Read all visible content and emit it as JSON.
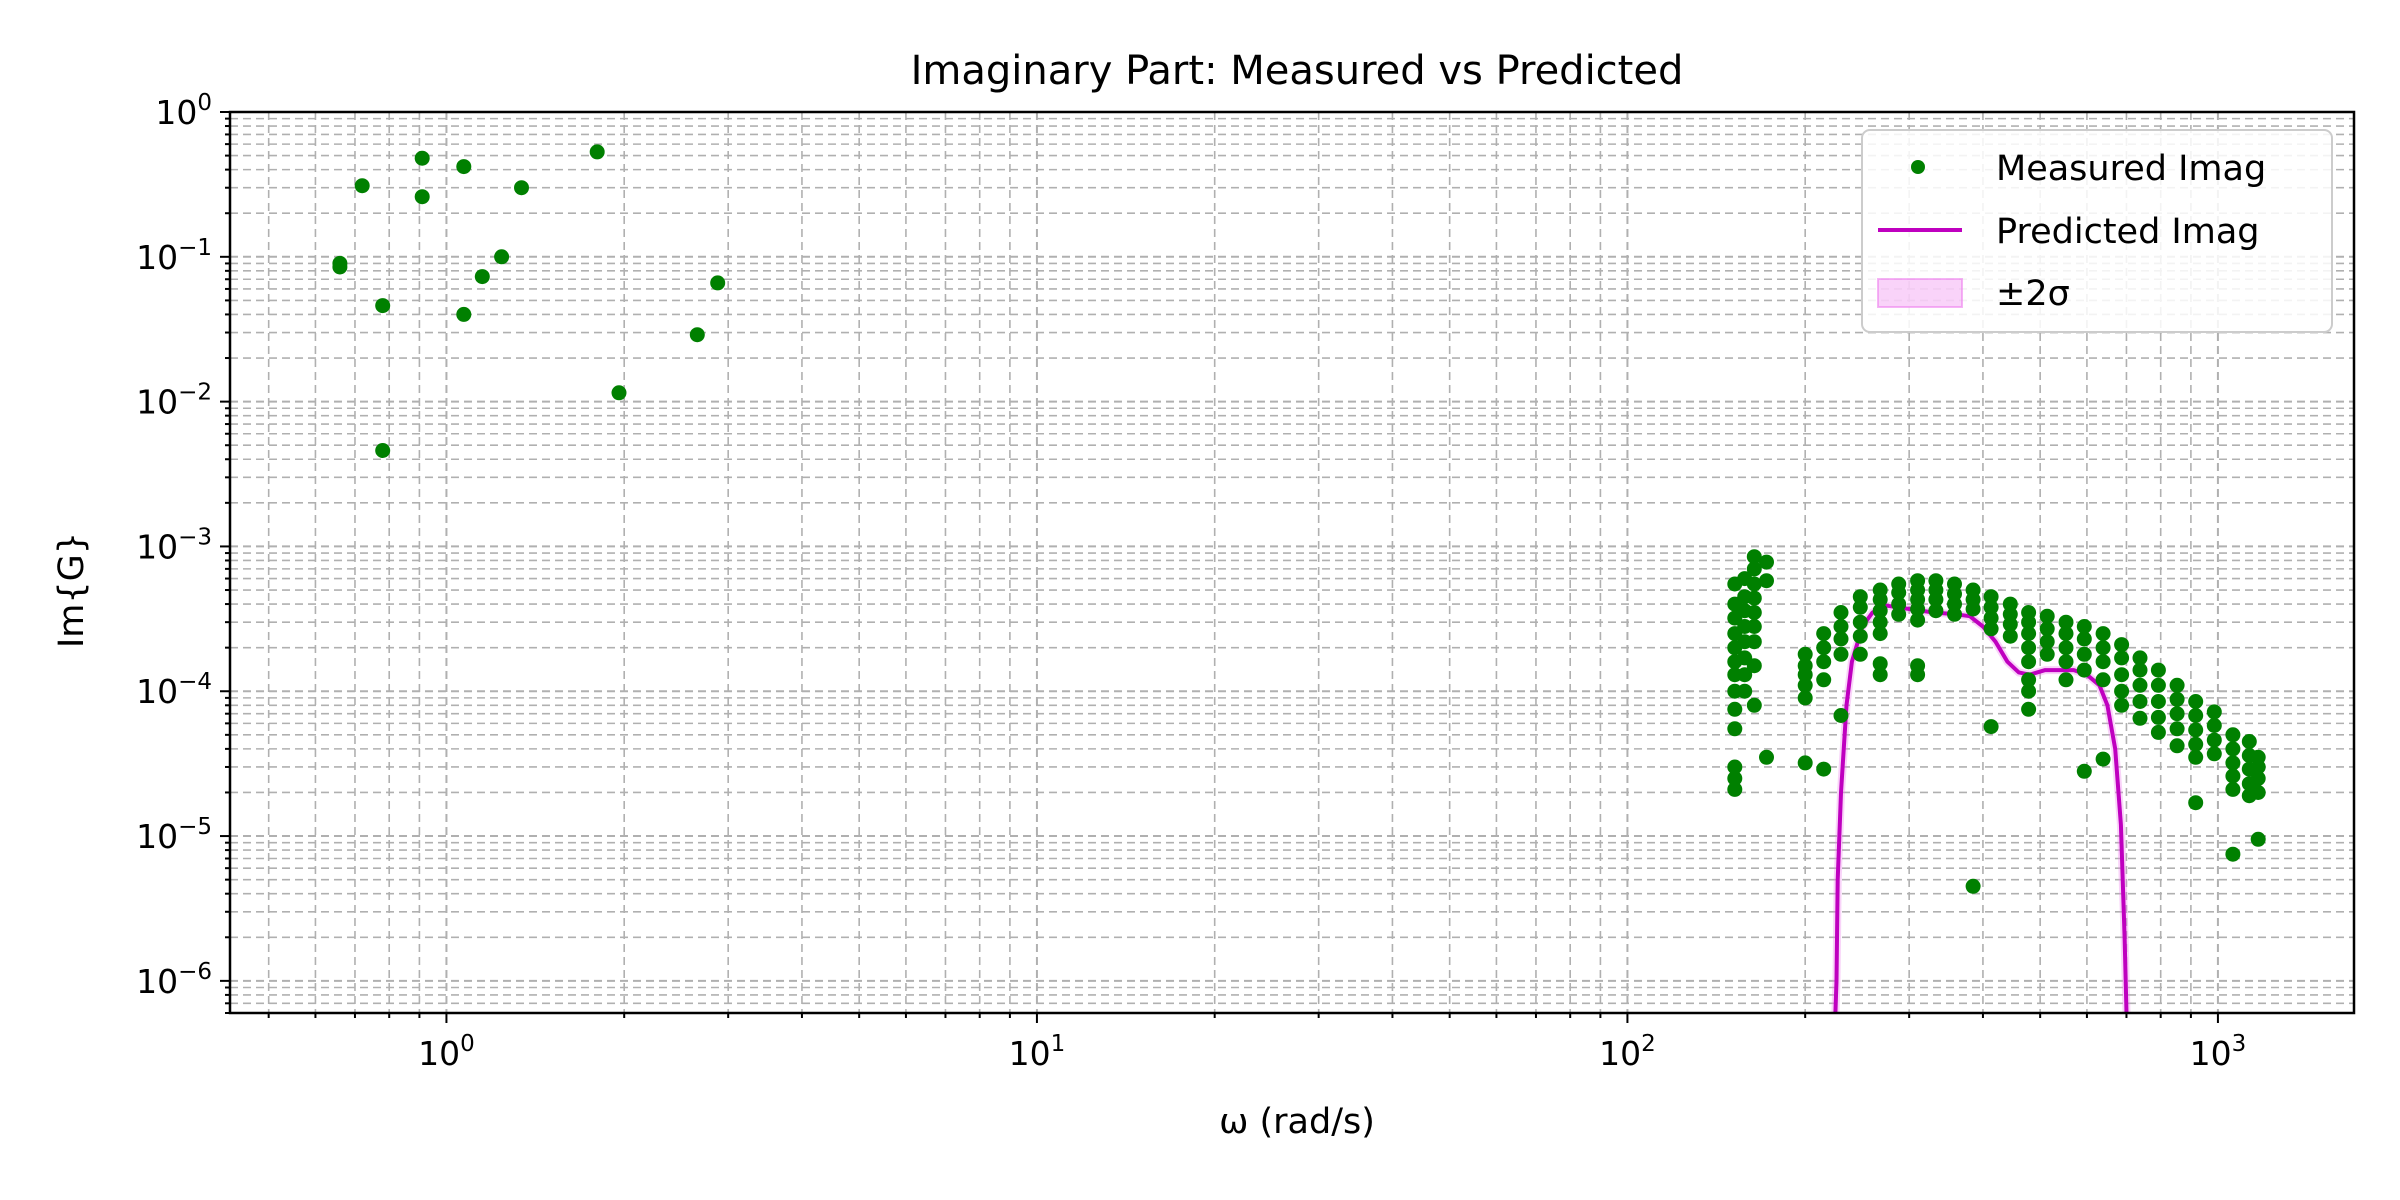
{
  "chart_data": {
    "type": "scatter",
    "title": "Imaginary Part: Measured vs Predicted",
    "xlabel": "ω (rad/s)",
    "ylabel": "Im{G}",
    "xscale": "log",
    "yscale": "log",
    "xlim": [
      0.43,
      1700
    ],
    "ylim": [
      6e-07,
      1.0
    ],
    "x_ticks": [
      {
        "value": 1,
        "base": "10",
        "exp": "0"
      },
      {
        "value": 10,
        "base": "10",
        "exp": "1"
      },
      {
        "value": 100,
        "base": "10",
        "exp": "2"
      },
      {
        "value": 1000,
        "base": "10",
        "exp": "3"
      }
    ],
    "y_ticks": [
      {
        "value": 1,
        "base": "10",
        "exp": "0"
      },
      {
        "value": 0.1,
        "base": "10",
        "exp": "−1"
      },
      {
        "value": 0.01,
        "base": "10",
        "exp": "−2"
      },
      {
        "value": 0.001,
        "base": "10",
        "exp": "−3"
      },
      {
        "value": 0.0001,
        "base": "10",
        "exp": "−4"
      },
      {
        "value": 1e-05,
        "base": "10",
        "exp": "−5"
      },
      {
        "value": 1e-06,
        "base": "10",
        "exp": "−6"
      }
    ],
    "grid": "both (major and minor, dashed)",
    "legend_position": "top-right",
    "colors": {
      "measured": "#008000",
      "predicted": "#bf00bf",
      "band": "#ee82ee"
    },
    "legend": [
      {
        "label": "Measured Imag",
        "kind": "marker"
      },
      {
        "label": "Predicted Imag",
        "kind": "line"
      },
      {
        "label": "±2σ",
        "kind": "patch"
      }
    ],
    "series": [
      {
        "name": "Measured Imag",
        "kind": "scatter",
        "points": [
          [
            0.66,
            0.09
          ],
          [
            0.66,
            0.085
          ],
          [
            0.72,
            0.31
          ],
          [
            0.78,
            0.046
          ],
          [
            0.78,
            0.0046
          ],
          [
            0.91,
            0.48
          ],
          [
            0.91,
            0.26
          ],
          [
            1.07,
            0.42
          ],
          [
            1.07,
            0.04
          ],
          [
            1.15,
            0.073
          ],
          [
            1.24,
            0.1
          ],
          [
            1.34,
            0.3
          ],
          [
            1.8,
            0.53
          ],
          [
            1.96,
            0.0115
          ],
          [
            2.66,
            0.029
          ],
          [
            2.88,
            0.066
          ],
          [
            152,
            0.00055
          ],
          [
            152,
            0.0004
          ],
          [
            152,
            0.00032
          ],
          [
            152,
            0.00025
          ],
          [
            152,
            0.0002
          ],
          [
            152,
            0.00016
          ],
          [
            152,
            0.00013
          ],
          [
            152,
            0.0001
          ],
          [
            152,
            7.5e-05
          ],
          [
            152,
            5.5e-05
          ],
          [
            152,
            3e-05
          ],
          [
            152,
            2.5e-05
          ],
          [
            152,
            2.1e-05
          ],
          [
            158,
            0.0006
          ],
          [
            158,
            0.00045
          ],
          [
            158,
            0.00036
          ],
          [
            158,
            0.00028
          ],
          [
            158,
            0.00022
          ],
          [
            158,
            0.00017
          ],
          [
            158,
            0.00013
          ],
          [
            158,
            0.0001
          ],
          [
            164,
            0.00085
          ],
          [
            164,
            0.0007
          ],
          [
            164,
            0.00055
          ],
          [
            164,
            0.00044
          ],
          [
            164,
            0.00035
          ],
          [
            164,
            0.00028
          ],
          [
            164,
            0.00022
          ],
          [
            164,
            0.00015
          ],
          [
            164,
            8e-05
          ],
          [
            172,
            0.00078
          ],
          [
            172,
            0.00058
          ],
          [
            172,
            3.5e-05
          ],
          [
            200,
            0.00018
          ],
          [
            200,
            0.00015
          ],
          [
            200,
            0.00013
          ],
          [
            200,
            0.00011
          ],
          [
            200,
            9e-05
          ],
          [
            200,
            3.2e-05
          ],
          [
            215,
            0.00025
          ],
          [
            215,
            0.0002
          ],
          [
            215,
            0.00016
          ],
          [
            215,
            0.00012
          ],
          [
            215,
            2.9e-05
          ],
          [
            230,
            0.00035
          ],
          [
            230,
            0.00028
          ],
          [
            230,
            0.00023
          ],
          [
            230,
            0.00018
          ],
          [
            230,
            6.8e-05
          ],
          [
            248,
            0.00045
          ],
          [
            248,
            0.00038
          ],
          [
            248,
            0.0003
          ],
          [
            248,
            0.00024
          ],
          [
            248,
            0.00018
          ],
          [
            268,
            0.0005
          ],
          [
            268,
            0.00043
          ],
          [
            268,
            0.00036
          ],
          [
            268,
            0.0003
          ],
          [
            268,
            0.00025
          ],
          [
            268,
            0.000155
          ],
          [
            268,
            0.00013
          ],
          [
            288,
            0.00055
          ],
          [
            288,
            0.00048
          ],
          [
            288,
            0.0004
          ],
          [
            288,
            0.00034
          ],
          [
            310,
            0.00058
          ],
          [
            310,
            0.0005
          ],
          [
            310,
            0.00043
          ],
          [
            310,
            0.00037
          ],
          [
            310,
            0.00031
          ],
          [
            310,
            0.00015
          ],
          [
            310,
            0.00013
          ],
          [
            333,
            0.00058
          ],
          [
            333,
            0.0005
          ],
          [
            333,
            0.00043
          ],
          [
            333,
            0.00036
          ],
          [
            358,
            0.00055
          ],
          [
            358,
            0.00047
          ],
          [
            358,
            0.0004
          ],
          [
            358,
            0.00034
          ],
          [
            385,
            0.0005
          ],
          [
            385,
            0.00043
          ],
          [
            385,
            0.00037
          ],
          [
            385,
            4.5e-06
          ],
          [
            413,
            0.00045
          ],
          [
            413,
            0.00038
          ],
          [
            413,
            0.00032
          ],
          [
            413,
            0.00027
          ],
          [
            413,
            5.7e-05
          ],
          [
            445,
            0.0004
          ],
          [
            445,
            0.00034
          ],
          [
            445,
            0.00029
          ],
          [
            445,
            0.00024
          ],
          [
            478,
            0.00035
          ],
          [
            478,
            0.0003
          ],
          [
            478,
            0.00025
          ],
          [
            478,
            0.0002
          ],
          [
            478,
            0.00016
          ],
          [
            478,
            0.00012
          ],
          [
            478,
            0.0001
          ],
          [
            478,
            7.5e-05
          ],
          [
            514,
            0.00033
          ],
          [
            514,
            0.00027
          ],
          [
            514,
            0.00022
          ],
          [
            514,
            0.00018
          ],
          [
            553,
            0.0003
          ],
          [
            553,
            0.00025
          ],
          [
            553,
            0.0002
          ],
          [
            553,
            0.00016
          ],
          [
            553,
            0.00012
          ],
          [
            594,
            0.00028
          ],
          [
            594,
            0.00023
          ],
          [
            594,
            0.00018
          ],
          [
            594,
            0.00014
          ],
          [
            594,
            2.8e-05
          ],
          [
            639,
            0.00025
          ],
          [
            639,
            0.0002
          ],
          [
            639,
            0.00016
          ],
          [
            639,
            0.00012
          ],
          [
            639,
            3.4e-05
          ],
          [
            687,
            0.00021
          ],
          [
            687,
            0.00017
          ],
          [
            687,
            0.00013
          ],
          [
            687,
            0.0001
          ],
          [
            687,
            8e-05
          ],
          [
            738,
            0.00017
          ],
          [
            738,
            0.00014
          ],
          [
            738,
            0.00011
          ],
          [
            738,
            8.5e-05
          ],
          [
            738,
            6.5e-05
          ],
          [
            793,
            0.00014
          ],
          [
            793,
            0.00011
          ],
          [
            793,
            8.5e-05
          ],
          [
            793,
            6.6e-05
          ],
          [
            793,
            5.2e-05
          ],
          [
            853,
            0.00011
          ],
          [
            853,
            8.8e-05
          ],
          [
            853,
            7e-05
          ],
          [
            853,
            5.5e-05
          ],
          [
            853,
            4.2e-05
          ],
          [
            917,
            8.5e-05
          ],
          [
            917,
            6.8e-05
          ],
          [
            917,
            5.4e-05
          ],
          [
            917,
            4.3e-05
          ],
          [
            917,
            3.5e-05
          ],
          [
            917,
            1.7e-05
          ],
          [
            986,
            7.2e-05
          ],
          [
            986,
            5.8e-05
          ],
          [
            986,
            4.6e-05
          ],
          [
            986,
            3.7e-05
          ],
          [
            1060,
            5e-05
          ],
          [
            1060,
            4e-05
          ],
          [
            1060,
            3.2e-05
          ],
          [
            1060,
            2.6e-05
          ],
          [
            1060,
            2.1e-05
          ],
          [
            1060,
            7.5e-06
          ],
          [
            1130,
            4.5e-05
          ],
          [
            1130,
            3.6e-05
          ],
          [
            1130,
            2.9e-05
          ],
          [
            1130,
            2.3e-05
          ],
          [
            1130,
            1.9e-05
          ],
          [
            1170,
            3.5e-05
          ],
          [
            1170,
            3e-05
          ],
          [
            1170,
            2.5e-05
          ],
          [
            1170,
            2e-05
          ],
          [
            1170,
            9.5e-06
          ]
        ]
      },
      {
        "name": "Predicted Imag",
        "kind": "line",
        "points": [
          [
            225,
            6e-07
          ],
          [
            226,
            1e-06
          ],
          [
            227,
            5e-06
          ],
          [
            230,
            2e-05
          ],
          [
            235,
            8e-05
          ],
          [
            240,
            0.00016
          ],
          [
            250,
            0.00028
          ],
          [
            260,
            0.00035
          ],
          [
            275,
            0.00039
          ],
          [
            300,
            0.00037
          ],
          [
            330,
            0.00035
          ],
          [
            360,
            0.00034
          ],
          [
            380,
            0.00033
          ],
          [
            400,
            0.00028
          ],
          [
            420,
            0.00022
          ],
          [
            440,
            0.00016
          ],
          [
            460,
            0.000135
          ],
          [
            480,
            0.00013
          ],
          [
            510,
            0.00014
          ],
          [
            540,
            0.00014
          ],
          [
            570,
            0.00014
          ],
          [
            600,
            0.00013
          ],
          [
            630,
            0.00011
          ],
          [
            650,
            8e-05
          ],
          [
            670,
            4e-05
          ],
          [
            685,
            1.2e-05
          ],
          [
            695,
            2e-06
          ],
          [
            700,
            6e-07
          ]
        ]
      }
    ]
  }
}
